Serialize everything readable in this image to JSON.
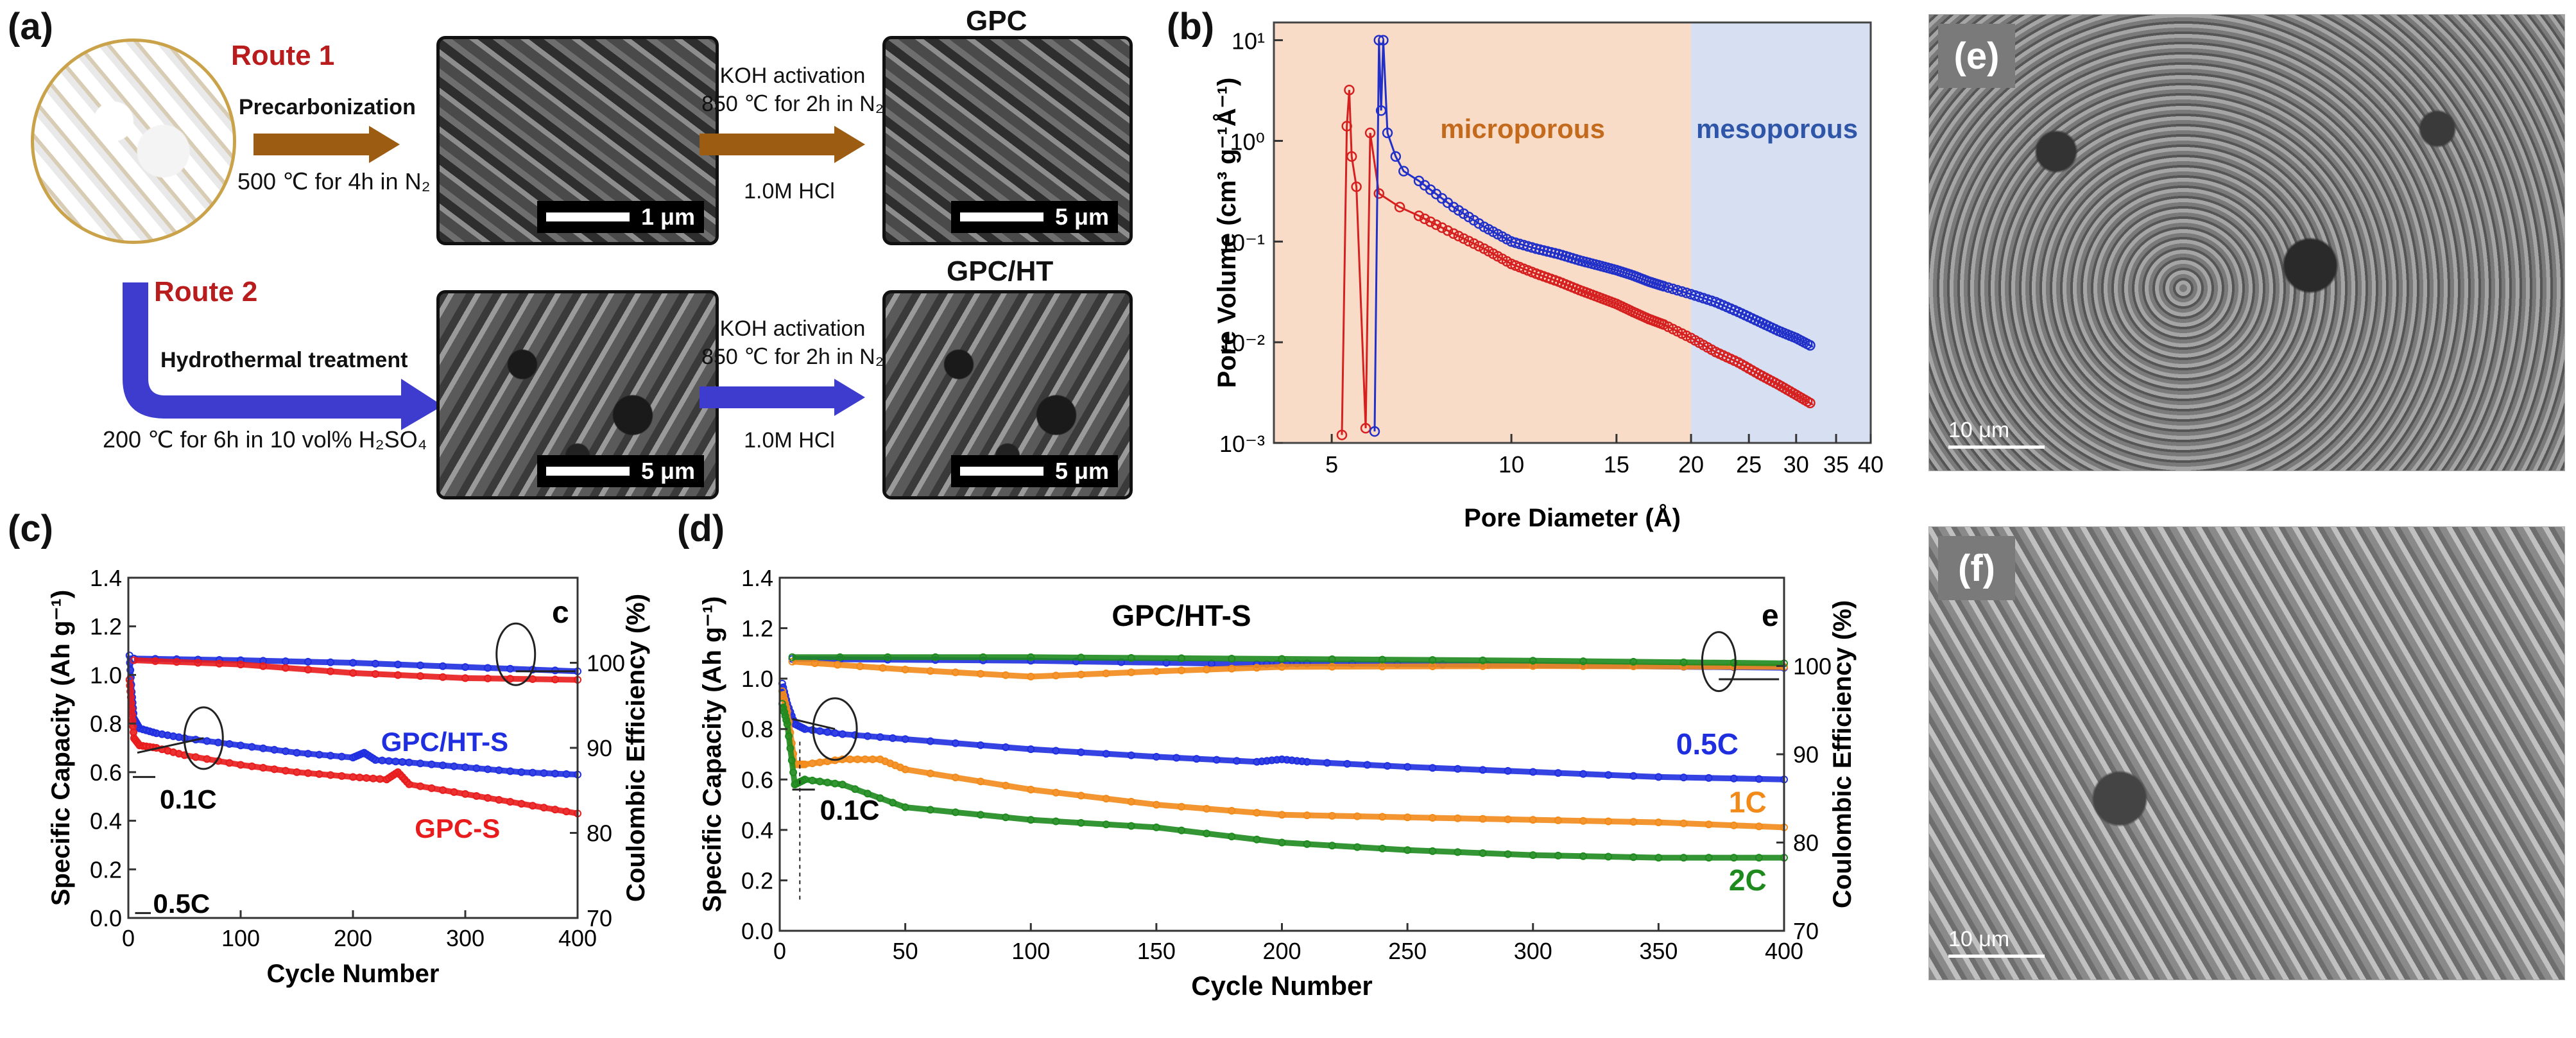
{
  "panel_a": {
    "letter": "(a)",
    "route1": "Route 1",
    "route2": "Route 2",
    "precarb_label": "Precarbonization",
    "precarb_cond": "500 ℃ for 4h in N₂",
    "koh1_line1": "KOH activation",
    "koh1_line2": "850 ℃ for 2h in N₂",
    "hcl1": "1.0M HCl",
    "hydro_label": "Hydrothermal treatment",
    "hydro_cond": "200 ℃ for 6h in 10 vol% H₂SO₄",
    "koh2_line1": "KOH activation",
    "koh2_line2": "850 ℃ for 2h in N₂",
    "hcl2": "1.0M HCl",
    "gpc_title": "GPC",
    "gpcht_title": "GPC/HT",
    "scale_1um": "1 μm",
    "scale_5um_a": "5 μm",
    "scale_5um_b": "5 μm",
    "scale_5um_c": "5 μm",
    "arrow_brown": "#9c5d12",
    "arrow_blue": "#3d3ccf"
  },
  "panel_b": {
    "letter": "(b)",
    "region_micro": "microporous",
    "region_meso": "mesoporous",
    "xlabel": "Pore Diameter (Å)",
    "ylabel": "Pore Volume (cm³ g⁻¹Å⁻¹)",
    "yticks": [
      "10¹",
      "10⁰",
      "10⁻¹",
      "10⁻²",
      "10⁻³"
    ],
    "xticks": [
      "5",
      "10",
      "15",
      "20",
      "25",
      "30",
      "35",
      "40"
    ]
  },
  "panel_c": {
    "letter": "(c)",
    "corner": "c",
    "xlabel": "Cycle Number",
    "ylabel_left": "Specific Capacity (Ah g⁻¹)",
    "ylabel_right": "Coulombic Efficiency (%)",
    "label_ht": "GPC/HT-S",
    "label_gpc": "GPC-S",
    "rate_01": "0.1C",
    "rate_05": "0.5C",
    "yticks_left": [
      "0.0",
      "0.2",
      "0.4",
      "0.6",
      "0.8",
      "1.0",
      "1.2",
      "1.4"
    ],
    "yticks_right": [
      "70",
      "80",
      "90",
      "100"
    ],
    "xticks": [
      "0",
      "100",
      "200",
      "300",
      "400"
    ]
  },
  "panel_d": {
    "letter": "(d)",
    "title": "GPC/HT-S",
    "corner": "e",
    "xlabel": "Cycle Number",
    "ylabel_left": "Specific Capacity (Ah g⁻¹)",
    "ylabel_right": "Coulombic Efficiency (%)",
    "rate_05": "0.5C",
    "rate_1": "1C",
    "rate_2": "2C",
    "rate_01": "0.1C",
    "yticks_left": [
      "0.0",
      "0.2",
      "0.4",
      "0.6",
      "0.8",
      "1.0",
      "1.2",
      "1.4"
    ],
    "yticks_right": [
      "70",
      "80",
      "90",
      "100"
    ],
    "xticks": [
      "0",
      "50",
      "100",
      "150",
      "200",
      "250",
      "300",
      "350",
      "400"
    ]
  },
  "panel_e": {
    "letter": "(e)",
    "scale": "10 μm"
  },
  "panel_f": {
    "letter": "(f)",
    "scale": "10 μm"
  },
  "chart_data": [
    {
      "id": "b",
      "type": "line",
      "xscale": "log",
      "yscale": "log",
      "xlim": [
        4,
        40
      ],
      "ylim": [
        0.001,
        15
      ],
      "xlabel": "Pore Diameter (Å)",
      "ylabel": "Pore Volume (cm³ g⁻¹Å⁻¹)",
      "regions": [
        {
          "label": "microporous",
          "from": 4,
          "to": 20,
          "color": "#f9dcc8"
        },
        {
          "label": "mesoporous",
          "from": 20,
          "to": 40,
          "color": "#d6e0f2"
        }
      ],
      "series": [
        {
          "color": "#d62020",
          "x": [
            5.2,
            5.3,
            5.35,
            5.4,
            5.5,
            5.7,
            5.8,
            6.0,
            6.5,
            7,
            8,
            9,
            10,
            11,
            12,
            13,
            14,
            15,
            16,
            17,
            18,
            20,
            22,
            24,
            26,
            28,
            30,
            32
          ],
          "y": [
            0.0012,
            1.4,
            3.2,
            0.7,
            0.35,
            0.0014,
            1.2,
            0.3,
            0.22,
            0.18,
            0.12,
            0.085,
            0.06,
            0.048,
            0.04,
            0.033,
            0.028,
            0.024,
            0.02,
            0.017,
            0.015,
            0.011,
            0.008,
            0.0063,
            0.0048,
            0.0038,
            0.003,
            0.0024
          ]
        },
        {
          "color": "#2030c8",
          "x": [
            5.9,
            6.0,
            6.05,
            6.1,
            6.2,
            6.4,
            6.6,
            7,
            8,
            9,
            10,
            11,
            12,
            13,
            14,
            15,
            16,
            17,
            18,
            20,
            22,
            24,
            26,
            28,
            30,
            32
          ],
          "y": [
            0.0013,
            10,
            2.0,
            10,
            1.2,
            0.7,
            0.5,
            0.4,
            0.22,
            0.14,
            0.1,
            0.085,
            0.075,
            0.065,
            0.058,
            0.052,
            0.046,
            0.04,
            0.036,
            0.03,
            0.025,
            0.02,
            0.016,
            0.013,
            0.011,
            0.009
          ]
        }
      ]
    },
    {
      "id": "c",
      "type": "scatter",
      "xlim": [
        0,
        400
      ],
      "ylim_left": [
        0,
        1.4
      ],
      "ylim_right": [
        70,
        110
      ],
      "xlabel": "Cycle Number",
      "ylabel_left": "Specific Capacity (Ah g⁻¹)",
      "ylabel_right": "Coulombic Efficiency (%)",
      "series": [
        {
          "name": "GPC/HT-S",
          "color": "#1f2fe0",
          "axis": "left",
          "x": [
            1,
            3,
            5,
            10,
            25,
            50,
            100,
            150,
            200,
            210,
            220,
            250,
            300,
            350,
            400
          ],
          "y": [
            1.08,
            0.93,
            0.82,
            0.78,
            0.76,
            0.74,
            0.71,
            0.68,
            0.66,
            0.68,
            0.65,
            0.64,
            0.62,
            0.6,
            0.59
          ]
        },
        {
          "name": "GPC-S",
          "color": "#e81c1c",
          "axis": "left",
          "x": [
            1,
            3,
            5,
            10,
            25,
            50,
            100,
            150,
            200,
            230,
            240,
            250,
            300,
            350,
            400
          ],
          "y": [
            0.98,
            0.86,
            0.74,
            0.71,
            0.7,
            0.67,
            0.63,
            0.6,
            0.58,
            0.57,
            0.6,
            0.55,
            0.51,
            0.47,
            0.43
          ]
        },
        {
          "name": "GPC/HT-S CE",
          "color": "#1f2fe0",
          "axis": "right",
          "x": [
            5,
            100,
            200,
            300,
            400
          ],
          "y": [
            100.5,
            100.3,
            100.0,
            99.5,
            99.0
          ]
        },
        {
          "name": "GPC-S CE",
          "color": "#e81c1c",
          "axis": "right",
          "x": [
            5,
            100,
            200,
            300,
            400
          ],
          "y": [
            100.3,
            99.8,
            98.8,
            98.2,
            98.0
          ]
        }
      ]
    },
    {
      "id": "d",
      "type": "scatter",
      "title": "GPC/HT-S",
      "xlim": [
        0,
        400
      ],
      "ylim_left": [
        0,
        1.4
      ],
      "ylim_right": [
        70,
        110
      ],
      "xlabel": "Cycle Number",
      "ylabel_left": "Specific Capacity (Ah g⁻¹)",
      "ylabel_right": "Coulombic Efficiency (%)",
      "series": [
        {
          "name": "0.5C",
          "color": "#1f2fe0",
          "axis": "left",
          "x": [
            1,
            3,
            6,
            10,
            25,
            50,
            100,
            150,
            190,
            200,
            210,
            250,
            300,
            350,
            400
          ],
          "y": [
            0.98,
            0.9,
            0.82,
            0.8,
            0.78,
            0.76,
            0.72,
            0.69,
            0.67,
            0.68,
            0.67,
            0.65,
            0.63,
            0.61,
            0.6
          ]
        },
        {
          "name": "1C",
          "color": "#f28a1a",
          "axis": "left",
          "x": [
            1,
            3,
            6,
            10,
            25,
            40,
            50,
            100,
            150,
            200,
            250,
            300,
            350,
            400
          ],
          "y": [
            0.95,
            0.87,
            0.66,
            0.66,
            0.68,
            0.68,
            0.64,
            0.56,
            0.5,
            0.46,
            0.45,
            0.44,
            0.43,
            0.41
          ]
        },
        {
          "name": "2C",
          "color": "#1e8a1e",
          "axis": "left",
          "x": [
            1,
            3,
            6,
            10,
            25,
            50,
            100,
            150,
            200,
            250,
            300,
            350,
            400
          ],
          "y": [
            0.9,
            0.82,
            0.58,
            0.6,
            0.58,
            0.49,
            0.44,
            0.41,
            0.35,
            0.32,
            0.3,
            0.29,
            0.29
          ]
        },
        {
          "name": "0.5C CE",
          "color": "#1f2fe0",
          "axis": "right",
          "x": [
            5,
            100,
            190,
            210,
            300,
            400
          ],
          "y": [
            100.8,
            100.6,
            100.2,
            100.3,
            100.1,
            99.8
          ]
        },
        {
          "name": "1C CE",
          "color": "#f28a1a",
          "axis": "right",
          "x": [
            5,
            50,
            100,
            150,
            200,
            300,
            400
          ],
          "y": [
            100.5,
            99.6,
            98.8,
            99.4,
            99.9,
            100.0,
            99.9
          ]
        },
        {
          "name": "2C CE",
          "color": "#1e8a1e",
          "axis": "right",
          "x": [
            5,
            100,
            200,
            300,
            400
          ],
          "y": [
            101.0,
            101.0,
            100.8,
            100.6,
            100.3
          ]
        }
      ]
    }
  ]
}
